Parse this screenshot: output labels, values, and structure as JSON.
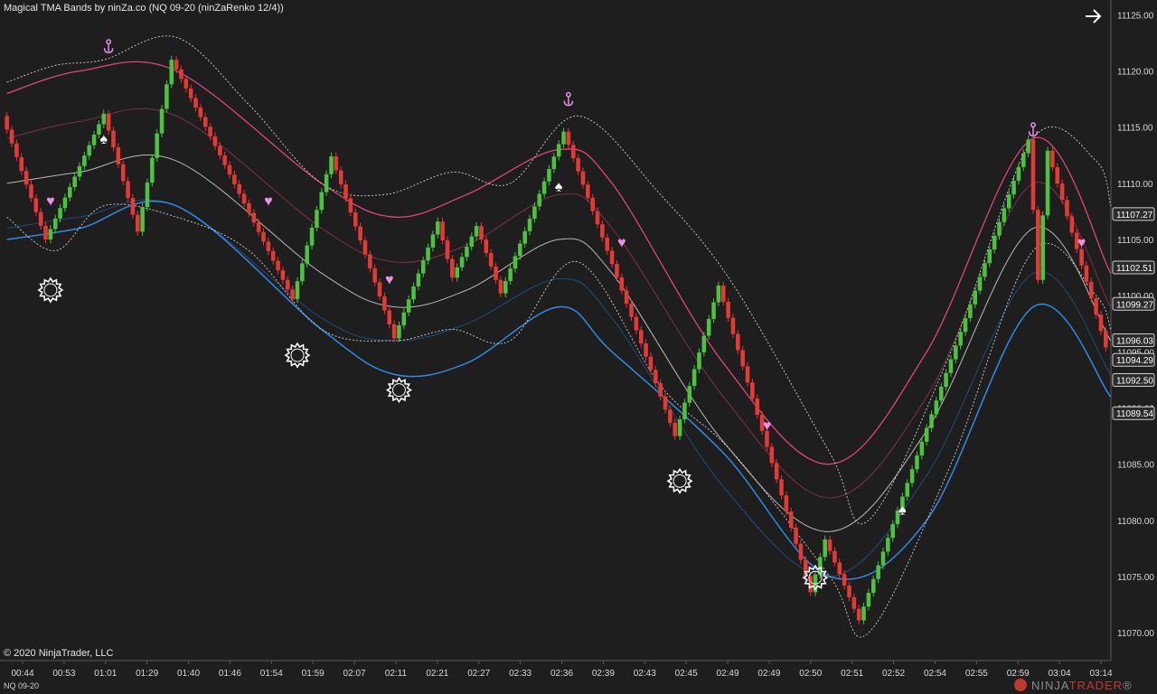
{
  "header": {
    "title": "Magical TMA Bands by ninZa.co (NQ 09-20 (ninZaRenko 12/4))"
  },
  "footer": {
    "copyright": "© 2020 NinjaTrader, LLC",
    "instrument": "NQ 09-20"
  },
  "brand": {
    "part1": "NINJA",
    "part2": "TRADER",
    "suffix": "®"
  },
  "icons": {
    "nav": "arrow-right-icon",
    "top_marker": "anchor-icon",
    "bottom_marker": "sun-icon",
    "bear_marker": "heart-icon",
    "bull_marker": "spade-icon"
  },
  "colors": {
    "background": "#1e1e1e",
    "up_bar": "#4cc23f",
    "down_bar": "#e53935",
    "upper_band": "#e0457b",
    "upper_mid": "#7a3344",
    "middle": "#b8b8b8",
    "lower_mid": "#244a78",
    "lower_band": "#2f8ae6",
    "outer_band": "#cfcfcf",
    "anchor": "#e58fe0",
    "heart": "#ee8fe6",
    "spade": "#ffffff",
    "sun": "#ffffff"
  },
  "chart_data": {
    "type": "candlestick",
    "title": "Magical TMA Bands by ninZa.co (NQ 09-20 (ninZaRenko 12/4))",
    "ylim": [
      11068,
      11126
    ],
    "yticks": [
      11070,
      11075,
      11080,
      11085,
      11090,
      11095,
      11100,
      11105,
      11110,
      11115,
      11120,
      11125
    ],
    "ytick_labels": [
      "11070.00",
      "11075.00",
      "11080.00",
      "11085.00",
      "11090.00",
      "11095.00",
      "11100.00",
      "11105.00",
      "11110.00",
      "11115.00",
      "11120.00",
      "11125.00"
    ],
    "xtick_labels": [
      "00:44",
      "00:53",
      "01:01",
      "01:29",
      "01:40",
      "01:46",
      "01:54",
      "01:59",
      "02:07",
      "02:11",
      "02:21",
      "02:27",
      "02:33",
      "02:36",
      "02:39",
      "02:43",
      "02:45",
      "02:49",
      "02:49",
      "02:50",
      "02:51",
      "02:52",
      "02:54",
      "02:55",
      "02:59",
      "03:04",
      "03:14"
    ],
    "price_markers": [
      {
        "value": 11107.27,
        "label": "11107.27"
      },
      {
        "value": 11102.51,
        "label": "11102.51"
      },
      {
        "value": 11099.27,
        "label": "11099.27"
      },
      {
        "value": 11096.03,
        "label": "11096.03"
      },
      {
        "value": 11094.29,
        "label": "11094.29"
      },
      {
        "value": 11092.5,
        "label": "11092.50"
      },
      {
        "value": 11089.54,
        "label": "11089.54"
      }
    ],
    "bar_count": 228,
    "pivots": [
      11116.0,
      11105.0,
      11116.2,
      11105.7,
      11121.0,
      11099.7,
      11112.4,
      11096.2,
      11106.6,
      11101.6,
      11106.2,
      11100.2,
      11114.6,
      11087.5,
      11100.9,
      11073.6,
      11078.3,
      11071.1,
      11113.9,
      11101.4,
      11112.9,
      11095.4
    ],
    "pivot_bars": [
      0,
      9,
      21,
      28,
      35,
      60,
      68,
      81,
      90,
      93,
      98,
      103,
      116,
      139,
      148,
      167,
      170,
      177,
      212,
      214,
      216,
      228
    ],
    "series": [
      {
        "name": "upper_band",
        "x": [
          0,
          15,
          35,
          65,
          80,
          95,
          114,
          125,
          148,
          170,
          190,
          212,
          228
        ],
        "y": [
          11118,
          11120,
          11120,
          11110,
          11107,
          11109,
          11113,
          11110,
          11094,
          11085,
          11095,
          11114,
          11102
        ]
      },
      {
        "name": "upper_mid",
        "x": [
          0,
          15,
          35,
          65,
          80,
          95,
          114,
          125,
          148,
          170,
          190,
          212,
          228
        ],
        "y": [
          11114,
          11115.5,
          11116,
          11106,
          11103,
          11104.5,
          11109,
          11106,
          11091,
          11082,
          11091,
          11110,
          11099
        ]
      },
      {
        "name": "middle",
        "x": [
          0,
          15,
          35,
          65,
          80,
          95,
          114,
          125,
          148,
          170,
          190,
          212,
          228
        ],
        "y": [
          11110,
          11111,
          11112,
          11102,
          11099,
          11100.5,
          11105,
          11102,
          11087,
          11079,
          11088,
          11106,
          11096
        ]
      },
      {
        "name": "lower_mid",
        "x": [
          0,
          15,
          35,
          65,
          80,
          95,
          114,
          125,
          148,
          170,
          190,
          212,
          228
        ],
        "y": [
          11106,
          11107,
          11108,
          11098,
          11096,
          11097.5,
          11101.5,
          11098,
          11083,
          11075,
          11084,
          11102,
          11093
        ]
      },
      {
        "name": "lower_band",
        "x": [
          0,
          15,
          35,
          65,
          80,
          95,
          114,
          125,
          148,
          170,
          190,
          212,
          228
        ],
        "y": [
          11105,
          11106,
          11108,
          11097,
          11093,
          11094,
          11099,
          11095,
          11086,
          11075,
          11080,
          11099,
          11091
        ]
      },
      {
        "name": "outer_upper",
        "x": [
          0,
          10,
          20,
          35,
          50,
          65,
          78,
          92,
          104,
          118,
          135,
          150,
          170,
          178,
          195,
          212,
          225,
          228
        ],
        "y": [
          11119,
          11120.5,
          11121,
          11123,
          11117,
          11110,
          11109,
          11111,
          11110,
          11116,
          11109,
          11101,
          11086,
          11080,
          11095,
          11114,
          11112,
          11108
        ]
      },
      {
        "name": "outer_lower",
        "x": [
          0,
          10,
          20,
          35,
          50,
          65,
          80,
          92,
          104,
          118,
          135,
          150,
          170,
          178,
          195,
          212,
          225,
          228
        ],
        "y": [
          11107,
          11104,
          11108,
          11107,
          11104,
          11097,
          11096,
          11097,
          11096,
          11103,
          11092,
          11086,
          11075,
          11070,
          11085,
          11104,
          11100,
          11097
        ]
      }
    ],
    "signals": [
      {
        "type": "anchor",
        "bar": 21,
        "price": 11122.2
      },
      {
        "type": "anchor",
        "bar": 116,
        "price": 11117.5
      },
      {
        "type": "anchor",
        "bar": 212,
        "price": 11114.8
      },
      {
        "type": "sun",
        "bar": 9,
        "price": 11100.5
      },
      {
        "type": "sun",
        "bar": 60,
        "price": 11094.7
      },
      {
        "type": "sun",
        "bar": 81,
        "price": 11091.6
      },
      {
        "type": "sun",
        "bar": 139,
        "price": 11083.5
      },
      {
        "type": "sun",
        "bar": 167,
        "price": 11074.9
      },
      {
        "type": "heart",
        "bar": 9,
        "price": 11108.5
      },
      {
        "type": "heart",
        "bar": 54,
        "price": 11108.5
      },
      {
        "type": "heart",
        "bar": 79,
        "price": 11101.5
      },
      {
        "type": "heart",
        "bar": 127,
        "price": 11104.8
      },
      {
        "type": "heart",
        "bar": 157,
        "price": 11088.5
      },
      {
        "type": "heart",
        "bar": 222,
        "price": 11104.8
      },
      {
        "type": "spade",
        "bar": 20,
        "price": 11114.0
      },
      {
        "type": "spade",
        "bar": 114,
        "price": 11109.8
      },
      {
        "type": "spade",
        "bar": 185,
        "price": 11081.0
      }
    ]
  }
}
